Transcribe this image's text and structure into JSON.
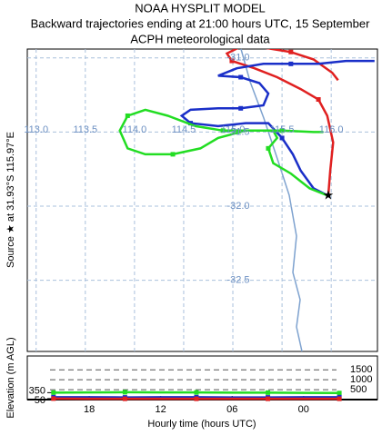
{
  "chart_data": [
    {
      "type": "trajectory",
      "title": "NOAA HYSPLIT MODEL",
      "subtitle": [
        "Backward trajectories ending at 21:00 hours UTC, 15 September",
        "ACPH meteorological data"
      ],
      "y_label": "Source ★ at 31.93°S 115.97°E",
      "source": [
        115.97,
        -31.93
      ],
      "xlim": [
        112.91,
        116.47
      ],
      "ylim": [
        -32.98,
        -30.94
      ],
      "xticks": [
        {
          "value": 113,
          "label": "113.0"
        },
        113.5,
        {
          "value": 114,
          "label": "114.0"
        },
        114.5,
        {
          "value": 115,
          "label": "115.0"
        },
        115.5,
        {
          "value": 116,
          "label": "116.0"
        }
      ],
      "yticks": [
        {
          "value": -31,
          "label": "-31.0"
        },
        -31.5,
        {
          "value": -32,
          "label": "-32.0"
        },
        -32.5
      ],
      "grid": true,
      "series": [
        {
          "color": "#e02020",
          "x": [
            115.97,
            115.99,
            116.02,
            115.96,
            115.87,
            115.69,
            115.45,
            115.22,
            114.99,
            114.94,
            115.06,
            115.31,
            115.59,
            115.82,
            116.01,
            116.07
          ],
          "values": [
            -31.93,
            -31.76,
            -31.57,
            -31.39,
            -31.28,
            -31.21,
            -31.13,
            -31.07,
            -31.02,
            -30.97,
            -30.93,
            -30.93,
            -30.96,
            -31.01,
            -31.1,
            -31.15
          ]
        },
        {
          "color": "#1a2fc8",
          "x": [
            115.97,
            115.82,
            115.69,
            115.61,
            115.5,
            115.36,
            115.13,
            114.85,
            114.57,
            114.48,
            114.57,
            114.85,
            115.08,
            115.31,
            115.36,
            115.27,
            115.08,
            114.85,
            115.04,
            115.31,
            115.59,
            115.87,
            116.15,
            116.44
          ],
          "values": [
            -31.93,
            -31.88,
            -31.76,
            -31.65,
            -31.54,
            -31.44,
            -31.44,
            -31.46,
            -31.44,
            -31.39,
            -31.35,
            -31.34,
            -31.34,
            -31.32,
            -31.24,
            -31.17,
            -31.13,
            -31.12,
            -31.07,
            -31.04,
            -31.04,
            -31.04,
            -31.02,
            -31.02
          ]
        },
        {
          "color": "#22dd22",
          "x": [
            115.97,
            115.78,
            115.59,
            115.41,
            115.36,
            115.45,
            115.41,
            115.18,
            114.9,
            114.62,
            114.34,
            114.11,
            113.93,
            113.85,
            113.93,
            114.11,
            114.39,
            114.67,
            114.85,
            115.13,
            115.5,
            115.82,
            115.92
          ],
          "values": [
            -31.93,
            -31.88,
            -31.78,
            -31.71,
            -31.61,
            -31.54,
            -31.49,
            -31.49,
            -31.49,
            -31.46,
            -31.39,
            -31.35,
            -31.39,
            -31.49,
            -31.61,
            -31.65,
            -31.65,
            -31.61,
            -31.54,
            -31.49,
            -31.49,
            -31.5,
            -31.5
          ]
        }
      ]
    },
    {
      "type": "line",
      "x_label": "Hourly time (hours UTC)",
      "y_label": "Elevation (m AGL)",
      "x": [
        0,
        3,
        6,
        9,
        12,
        15,
        18,
        21,
        24
      ],
      "xlim": [
        -2.2,
        27.2
      ],
      "ylim": [
        0,
        2200
      ],
      "xticks": [
        {
          "value": 3,
          "label": "18"
        },
        {
          "value": 9,
          "label": "12"
        },
        {
          "value": 15,
          "label": "06"
        },
        {
          "value": 21,
          "label": "00"
        }
      ],
      "yticks": [
        500,
        1000,
        1500
      ],
      "start_ticks": [
        350,
        50
      ],
      "series": [
        {
          "color": "#22dd22",
          "values": [
            350,
            360,
            370,
            360,
            360,
            350,
            350,
            340,
            330
          ]
        },
        {
          "color": "#1a2fc8",
          "values": [
            120,
            120,
            110,
            120,
            120,
            110,
            110,
            120,
            120
          ]
        },
        {
          "color": "#e02020",
          "values": [
            50,
            40,
            40,
            40,
            40,
            40,
            40,
            40,
            40
          ]
        }
      ]
    }
  ]
}
